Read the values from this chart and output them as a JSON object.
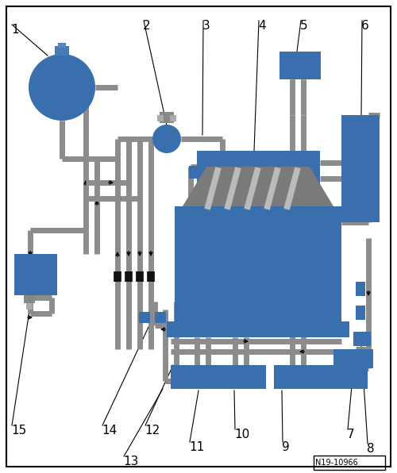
{
  "bg": "#ffffff",
  "blue": "#3a6fad",
  "gray": "#8c8c8c",
  "lgray": "#aaaaaa",
  "dgray": "#555555",
  "black": "#000000",
  "note": "N19-10966",
  "lfs": 11
}
